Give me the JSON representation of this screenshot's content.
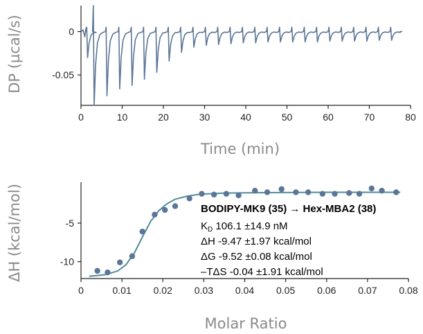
{
  "chart_data": [
    {
      "type": "line",
      "xlabel": "Time (min)",
      "ylabel": "DP (µcal/s)",
      "xlim": [
        0,
        80
      ],
      "ylim": [
        -0.085,
        0.03
      ],
      "xticks": [
        "0",
        "10",
        "20",
        "30",
        "40",
        "50",
        "60",
        "70",
        "80"
      ],
      "xtick_values": [
        0,
        10,
        20,
        30,
        40,
        50,
        60,
        70,
        80
      ],
      "yticks": [
        "0",
        "-0.05"
      ],
      "ytick_values": [
        0,
        -0.05
      ],
      "baseline": 0,
      "injection_times": [
        1.5,
        3.1,
        6.2,
        9.3,
        12.3,
        15.3,
        18.3,
        21.3,
        24.3,
        27.3,
        30.3,
        33.3,
        36.3,
        39.3,
        42.3,
        45.3,
        48.3,
        51.3,
        54.3,
        57.3,
        60.3,
        63.3,
        66.3,
        69.3,
        72.3,
        75.3
      ],
      "peak_values": [
        -0.03,
        -0.085,
        -0.074,
        -0.066,
        -0.062,
        -0.055,
        -0.047,
        -0.034,
        -0.024,
        -0.018,
        -0.016,
        -0.015,
        -0.014,
        -0.013,
        -0.013,
        -0.012,
        -0.012,
        -0.012,
        -0.012,
        -0.012,
        -0.011,
        -0.011,
        -0.011,
        -0.011,
        -0.01,
        -0.01
      ],
      "line_color": "#5b7696",
      "grid": false
    },
    {
      "type": "scatter",
      "xlabel": "Molar Ratio",
      "ylabel": "ΔH (kcal/mol)",
      "xlim": [
        0,
        0.08
      ],
      "ylim": [
        -12.2,
        0.3
      ],
      "xticks": [
        "0",
        "0.01",
        "0.02",
        "0.03",
        "0.04",
        "0.05",
        "0.06",
        "0.07",
        "0.08"
      ],
      "xtick_values": [
        0,
        0.01,
        0.02,
        0.03,
        0.04,
        0.05,
        0.06,
        0.07,
        0.08
      ],
      "yticks": [
        "-5",
        "-10"
      ],
      "ytick_values": [
        -5,
        -10
      ],
      "points": {
        "x": [
          0.004,
          0.0065,
          0.0095,
          0.0125,
          0.015,
          0.018,
          0.0205,
          0.023,
          0.0265,
          0.0295,
          0.0325,
          0.0355,
          0.0385,
          0.0425,
          0.0455,
          0.049,
          0.0525,
          0.0555,
          0.059,
          0.062,
          0.0655,
          0.068,
          0.071,
          0.0735,
          0.077
        ],
        "y": [
          -11.2,
          -11.4,
          -10.1,
          -9.3,
          -6.1,
          -3.9,
          -3.3,
          -2.8,
          -1.8,
          -1.2,
          -1.3,
          -1.2,
          -1.4,
          -0.8,
          -1.0,
          -0.6,
          -1.0,
          -1.0,
          -1.2,
          -1.2,
          -1.1,
          -1.2,
          -0.5,
          -0.8,
          -1.0
        ]
      },
      "fit": {
        "x": [
          0.002,
          0.006,
          0.009,
          0.011,
          0.013,
          0.015,
          0.017,
          0.019,
          0.021,
          0.023,
          0.026,
          0.029,
          0.035,
          0.045,
          0.06,
          0.078
        ],
        "y": [
          -11.9,
          -11.7,
          -11.2,
          -10.4,
          -8.9,
          -6.8,
          -4.8,
          -3.4,
          -2.5,
          -1.9,
          -1.5,
          -1.25,
          -1.1,
          -1.05,
          -1.0,
          -1.0
        ]
      },
      "point_color": "#5b7696",
      "fit_color": "#4f8a99",
      "grid": false
    }
  ],
  "annotation": {
    "title": "BODIPY-MK9 (35) → Hex-MBA2 (38)",
    "kd_symbol": "K",
    "kd_sub": "D",
    "kd_value": " 106.1 ±14.9 nM",
    "dh": "ΔH -9.47 ±1.97 kcal/mol",
    "dg": "ΔG -9.52 ±0.08 kcal/mol",
    "tds": "–TΔS -0.04 ±1.91 kcal/mol"
  }
}
